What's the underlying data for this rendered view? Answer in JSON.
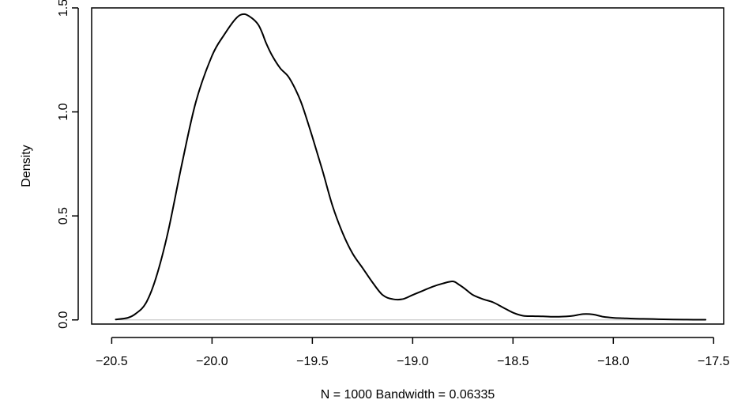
{
  "chart_data": {
    "type": "line",
    "title": "",
    "xlabel": "N = 1000   Bandwidth = 0.06335",
    "ylabel": "Density",
    "xlim": [
      -20.6,
      -17.45
    ],
    "ylim": [
      -0.02,
      1.5
    ],
    "x_ticks": [
      -20.5,
      -20.0,
      -19.5,
      -19.0,
      -18.5,
      -18.0,
      -17.5
    ],
    "x_tick_labels": [
      "−20.5",
      "−20.0",
      "−19.5",
      "−19.0",
      "−18.5",
      "−18.0",
      "−17.5"
    ],
    "y_ticks": [
      0.0,
      0.5,
      1.0,
      1.5
    ],
    "y_tick_labels": [
      "0.0",
      "0.5",
      "1.0",
      "1.5"
    ],
    "baseline": 0,
    "grid": false,
    "colors": {
      "line": "#000000",
      "baseline": "#bebebe",
      "axis": "#000000",
      "background": "#ffffff"
    },
    "series": [
      {
        "x": [
          -20.48,
          -20.42,
          -20.38,
          -20.33,
          -20.28,
          -20.22,
          -20.15,
          -20.08,
          -20.0,
          -19.94,
          -19.88,
          -19.84,
          -19.8,
          -19.77,
          -19.75,
          -19.73,
          -19.7,
          -19.66,
          -19.62,
          -19.58,
          -19.55,
          -19.5,
          -19.45,
          -19.4,
          -19.35,
          -19.3,
          -19.25,
          -19.2,
          -19.15,
          -19.1,
          -19.05,
          -19.0,
          -18.95,
          -18.9,
          -18.85,
          -18.8,
          -18.77,
          -18.74,
          -18.7,
          -18.65,
          -18.6,
          -18.55,
          -18.5,
          -18.45,
          -18.4,
          -18.35,
          -18.3,
          -18.25,
          -18.2,
          -18.15,
          -18.1,
          -18.05,
          -18.0,
          -17.95,
          -17.9,
          -17.85,
          -17.8,
          -17.75,
          -17.7,
          -17.65,
          -17.6,
          -17.54
        ],
        "y": [
          0.002,
          0.01,
          0.03,
          0.08,
          0.2,
          0.42,
          0.75,
          1.05,
          1.27,
          1.37,
          1.45,
          1.47,
          1.45,
          1.42,
          1.38,
          1.33,
          1.27,
          1.21,
          1.17,
          1.1,
          1.03,
          0.88,
          0.72,
          0.55,
          0.42,
          0.32,
          0.25,
          0.18,
          0.12,
          0.1,
          0.1,
          0.12,
          0.14,
          0.16,
          0.175,
          0.185,
          0.17,
          0.15,
          0.12,
          0.1,
          0.085,
          0.06,
          0.035,
          0.02,
          0.018,
          0.017,
          0.015,
          0.016,
          0.02,
          0.028,
          0.026,
          0.015,
          0.01,
          0.008,
          0.006,
          0.005,
          0.004,
          0.003,
          0.002,
          0.0015,
          0.001,
          0.001
        ]
      }
    ]
  }
}
